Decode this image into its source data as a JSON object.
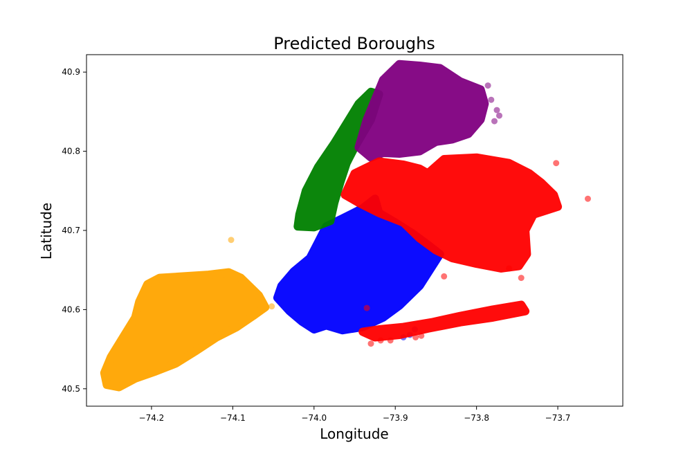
{
  "chart_data": {
    "type": "scatter",
    "title": "Predicted Boroughs",
    "xlabel": "Longitude",
    "ylabel": "Latitude",
    "xlim": [
      -74.28,
      -73.62
    ],
    "ylim": [
      40.478,
      40.922
    ],
    "xticks": [
      -74.2,
      -74.1,
      -74.0,
      -73.9,
      -73.8,
      -73.7
    ],
    "xtick_labels": [
      "−74.2",
      "−74.1",
      "−74.0",
      "−73.9",
      "−73.8",
      "−73.7"
    ],
    "yticks": [
      40.5,
      40.6,
      40.7,
      40.8,
      40.9
    ],
    "ytick_labels": [
      "40.5",
      "40.6",
      "40.7",
      "40.8",
      "40.9"
    ],
    "grid": false,
    "legend": false,
    "series": [
      {
        "color": "#ffa500",
        "regions": [
          [
            [
              -74.255,
              40.505
            ],
            [
              -74.24,
              40.502
            ],
            [
              -74.22,
              40.513
            ],
            [
              -74.195,
              40.522
            ],
            [
              -74.17,
              40.532
            ],
            [
              -74.145,
              40.548
            ],
            [
              -74.12,
              40.565
            ],
            [
              -74.095,
              40.578
            ],
            [
              -74.075,
              40.592
            ],
            [
              -74.06,
              40.603
            ],
            [
              -74.068,
              40.618
            ],
            [
              -74.08,
              40.63
            ],
            [
              -74.09,
              40.64
            ],
            [
              -74.105,
              40.647
            ],
            [
              -74.13,
              40.644
            ],
            [
              -74.16,
              40.642
            ],
            [
              -74.19,
              40.64
            ],
            [
              -74.205,
              40.632
            ],
            [
              -74.215,
              40.61
            ],
            [
              -74.22,
              40.59
            ],
            [
              -74.235,
              40.565
            ],
            [
              -74.25,
              40.54
            ],
            [
              -74.258,
              40.52
            ]
          ]
        ],
        "points": [
          [
            -74.102,
            40.688
          ],
          [
            -74.052,
            40.604
          ]
        ]
      },
      {
        "color": "#0000ff",
        "regions": [
          [
            [
              -74.045,
              40.615
            ],
            [
              -74.04,
              40.63
            ],
            [
              -74.025,
              40.648
            ],
            [
              -74.005,
              40.665
            ],
            [
              -73.995,
              40.685
            ],
            [
              -73.985,
              40.705
            ],
            [
              -73.965,
              40.715
            ],
            [
              -73.94,
              40.728
            ],
            [
              -73.925,
              40.74
            ],
            [
              -73.92,
              40.722
            ],
            [
              -73.9,
              40.71
            ],
            [
              -73.88,
              40.697
            ],
            [
              -73.86,
              40.682
            ],
            [
              -73.845,
              40.67
            ],
            [
              -73.87,
              40.63
            ],
            [
              -73.895,
              40.605
            ],
            [
              -73.915,
              40.59
            ],
            [
              -73.94,
              40.578
            ],
            [
              -73.965,
              40.574
            ],
            [
              -73.985,
              40.58
            ],
            [
              -74.0,
              40.575
            ],
            [
              -74.015,
              40.585
            ],
            [
              -74.03,
              40.598
            ]
          ]
        ],
        "points": [
          [
            -73.89,
            40.565
          ],
          [
            -73.882,
            40.568
          ],
          [
            -73.876,
            40.575
          ]
        ]
      },
      {
        "color": "#008000",
        "regions": [
          [
            [
              -74.02,
              40.705
            ],
            [
              -74.018,
              40.72
            ],
            [
              -74.01,
              40.75
            ],
            [
              -73.995,
              40.78
            ],
            [
              -73.975,
              40.81
            ],
            [
              -73.96,
              40.835
            ],
            [
              -73.945,
              40.86
            ],
            [
              -73.93,
              40.875
            ],
            [
              -73.92,
              40.872
            ],
            [
              -73.93,
              40.84
            ],
            [
              -73.95,
              40.805
            ],
            [
              -73.96,
              40.785
            ],
            [
              -73.968,
              40.76
            ],
            [
              -73.975,
              40.735
            ],
            [
              -73.98,
              40.712
            ],
            [
              -74.0,
              40.704
            ]
          ]
        ],
        "points": []
      },
      {
        "color": "#800080",
        "regions": [
          [
            [
              -73.945,
              40.805
            ],
            [
              -73.935,
              40.84
            ],
            [
              -73.925,
              40.865
            ],
            [
              -73.915,
              40.89
            ],
            [
              -73.895,
              40.91
            ],
            [
              -73.87,
              40.908
            ],
            [
              -73.845,
              40.905
            ],
            [
              -73.82,
              40.888
            ],
            [
              -73.795,
              40.878
            ],
            [
              -73.79,
              40.86
            ],
            [
              -73.795,
              40.84
            ],
            [
              -73.81,
              40.822
            ],
            [
              -73.83,
              40.815
            ],
            [
              -73.85,
              40.812
            ],
            [
              -73.87,
              40.8
            ],
            [
              -73.895,
              40.797
            ],
            [
              -73.915,
              40.798
            ],
            [
              -73.93,
              40.792
            ]
          ]
        ],
        "points": [
          [
            -73.786,
            40.883
          ],
          [
            -73.782,
            40.865
          ],
          [
            -73.775,
            40.852
          ],
          [
            -73.772,
            40.845
          ],
          [
            -73.778,
            40.838
          ]
        ]
      },
      {
        "color": "#ff0000",
        "regions": [
          [
            [
              -73.962,
              40.745
            ],
            [
              -73.95,
              40.772
            ],
            [
              -73.92,
              40.787
            ],
            [
              -73.89,
              40.783
            ],
            [
              -73.87,
              40.778
            ],
            [
              -73.86,
              40.772
            ],
            [
              -73.84,
              40.79
            ],
            [
              -73.8,
              40.792
            ],
            [
              -73.76,
              40.785
            ],
            [
              -73.735,
              40.772
            ],
            [
              -73.72,
              40.76
            ],
            [
              -73.705,
              40.745
            ],
            [
              -73.7,
              40.73
            ],
            [
              -73.73,
              40.72
            ],
            [
              -73.74,
              40.7
            ],
            [
              -73.738,
              40.67
            ],
            [
              -73.748,
              40.655
            ],
            [
              -73.77,
              40.652
            ],
            [
              -73.8,
              40.658
            ],
            [
              -73.83,
              40.665
            ],
            [
              -73.85,
              40.675
            ],
            [
              -73.87,
              40.69
            ],
            [
              -73.89,
              40.71
            ],
            [
              -73.92,
              40.722
            ],
            [
              -73.945,
              40.735
            ]
          ],
          [
            [
              -73.94,
              40.572
            ],
            [
              -73.92,
              40.575
            ],
            [
              -73.89,
              40.578
            ],
            [
              -73.855,
              40.584
            ],
            [
              -73.82,
              40.592
            ],
            [
              -73.78,
              40.6
            ],
            [
              -73.745,
              40.606
            ],
            [
              -73.74,
              40.598
            ],
            [
              -73.78,
              40.59
            ],
            [
              -73.82,
              40.584
            ],
            [
              -73.86,
              40.576
            ],
            [
              -73.895,
              40.568
            ],
            [
              -73.925,
              40.565
            ]
          ]
        ],
        "points": [
          [
            -73.663,
            40.74
          ],
          [
            -73.702,
            40.785
          ],
          [
            -73.935,
            40.602
          ],
          [
            -73.93,
            40.557
          ],
          [
            -73.918,
            40.561
          ],
          [
            -73.906,
            40.561
          ],
          [
            -73.868,
            40.567
          ],
          [
            -73.875,
            40.565
          ],
          [
            -73.84,
            40.642
          ],
          [
            -73.76,
            40.652
          ],
          [
            -73.745,
            40.64
          ]
        ]
      }
    ]
  }
}
